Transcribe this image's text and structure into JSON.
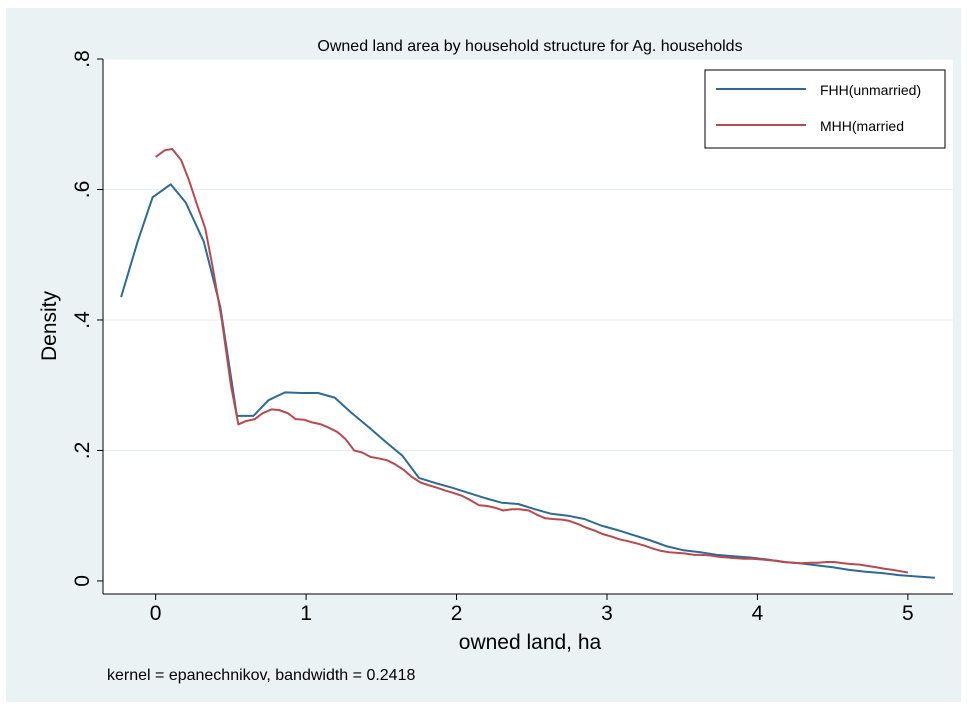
{
  "chart_data": {
    "type": "line",
    "title": "Owned land area by household structure for Ag. households",
    "xlabel": "owned land, ha",
    "ylabel": "Density",
    "note": "kernel = epanechnikov, bandwidth = 0.2418",
    "xlim": [
      -0.35,
      5.3
    ],
    "ylim": [
      -0.02,
      0.8
    ],
    "x_ticks": [
      0,
      1,
      2,
      3,
      4,
      5
    ],
    "x_tick_labels": [
      "0",
      "1",
      "2",
      "3",
      "4",
      "5"
    ],
    "y_ticks": [
      0,
      0.2,
      0.4,
      0.6,
      0.8
    ],
    "y_tick_labels": [
      "0",
      ".2",
      ".4",
      ".6",
      ".8"
    ],
    "grid": true,
    "legend_position": "top-right",
    "series": [
      {
        "name": "FHH(unmarried)",
        "color": "#2e6a96",
        "points": [
          [
            -0.23,
            0.435
          ],
          [
            -0.12,
            0.52
          ],
          [
            -0.02,
            0.588
          ],
          [
            0.1,
            0.608
          ],
          [
            0.2,
            0.58
          ],
          [
            0.32,
            0.52
          ],
          [
            0.43,
            0.42
          ],
          [
            0.54,
            0.253
          ],
          [
            0.65,
            0.253
          ],
          [
            0.75,
            0.277
          ],
          [
            0.86,
            0.289
          ],
          [
            0.97,
            0.288
          ],
          [
            1.08,
            0.288
          ],
          [
            1.19,
            0.281
          ],
          [
            1.3,
            0.258
          ],
          [
            1.42,
            0.235
          ],
          [
            1.53,
            0.213
          ],
          [
            1.64,
            0.192
          ],
          [
            1.75,
            0.158
          ],
          [
            1.86,
            0.15
          ],
          [
            1.97,
            0.143
          ],
          [
            2.08,
            0.135
          ],
          [
            2.19,
            0.127
          ],
          [
            2.3,
            0.12
          ],
          [
            2.41,
            0.118
          ],
          [
            2.52,
            0.11
          ],
          [
            2.63,
            0.103
          ],
          [
            2.74,
            0.1
          ],
          [
            2.85,
            0.095
          ],
          [
            2.96,
            0.085
          ],
          [
            3.07,
            0.078
          ],
          [
            3.18,
            0.07
          ],
          [
            3.29,
            0.062
          ],
          [
            3.4,
            0.053
          ],
          [
            3.51,
            0.047
          ],
          [
            3.62,
            0.044
          ],
          [
            3.73,
            0.04
          ],
          [
            3.84,
            0.038
          ],
          [
            3.95,
            0.036
          ],
          [
            4.06,
            0.033
          ],
          [
            4.17,
            0.029
          ],
          [
            4.28,
            0.027
          ],
          [
            4.39,
            0.024
          ],
          [
            4.5,
            0.021
          ],
          [
            4.61,
            0.017
          ],
          [
            4.72,
            0.014
          ],
          [
            4.83,
            0.012
          ],
          [
            4.94,
            0.009
          ],
          [
            5.05,
            0.007
          ],
          [
            5.18,
            0.005
          ]
        ]
      },
      {
        "name": "MHH(married",
        "color": "#b84a4f",
        "points": [
          [
            0.0,
            0.65
          ],
          [
            0.06,
            0.66
          ],
          [
            0.11,
            0.662
          ],
          [
            0.17,
            0.645
          ],
          [
            0.22,
            0.615
          ],
          [
            0.27,
            0.58
          ],
          [
            0.33,
            0.54
          ],
          [
            0.38,
            0.48
          ],
          [
            0.44,
            0.4
          ],
          [
            0.5,
            0.3
          ],
          [
            0.55,
            0.24
          ],
          [
            0.6,
            0.245
          ],
          [
            0.66,
            0.248
          ],
          [
            0.71,
            0.257
          ],
          [
            0.77,
            0.263
          ],
          [
            0.82,
            0.262
          ],
          [
            0.88,
            0.257
          ],
          [
            0.93,
            0.248
          ],
          [
            0.99,
            0.247
          ],
          [
            1.04,
            0.243
          ],
          [
            1.1,
            0.24
          ],
          [
            1.15,
            0.235
          ],
          [
            1.21,
            0.228
          ],
          [
            1.26,
            0.218
          ],
          [
            1.32,
            0.2
          ],
          [
            1.37,
            0.197
          ],
          [
            1.43,
            0.19
          ],
          [
            1.48,
            0.188
          ],
          [
            1.54,
            0.185
          ],
          [
            1.59,
            0.179
          ],
          [
            1.65,
            0.17
          ],
          [
            1.7,
            0.16
          ],
          [
            1.76,
            0.151
          ],
          [
            1.81,
            0.147
          ],
          [
            1.87,
            0.143
          ],
          [
            1.92,
            0.139
          ],
          [
            1.98,
            0.135
          ],
          [
            2.04,
            0.13
          ],
          [
            2.09,
            0.124
          ],
          [
            2.15,
            0.116
          ],
          [
            2.2,
            0.115
          ],
          [
            2.26,
            0.112
          ],
          [
            2.31,
            0.108
          ],
          [
            2.37,
            0.11
          ],
          [
            2.42,
            0.11
          ],
          [
            2.48,
            0.108
          ],
          [
            2.53,
            0.102
          ],
          [
            2.59,
            0.096
          ],
          [
            2.64,
            0.095
          ],
          [
            2.7,
            0.094
          ],
          [
            2.75,
            0.092
          ],
          [
            2.81,
            0.087
          ],
          [
            2.86,
            0.082
          ],
          [
            2.92,
            0.077
          ],
          [
            2.97,
            0.072
          ],
          [
            3.03,
            0.068
          ],
          [
            3.08,
            0.064
          ],
          [
            3.14,
            0.061
          ],
          [
            3.19,
            0.058
          ],
          [
            3.25,
            0.054
          ],
          [
            3.3,
            0.05
          ],
          [
            3.36,
            0.046
          ],
          [
            3.41,
            0.044
          ],
          [
            3.47,
            0.043
          ],
          [
            3.52,
            0.042
          ],
          [
            3.58,
            0.04
          ],
          [
            3.63,
            0.04
          ],
          [
            3.69,
            0.039
          ],
          [
            3.74,
            0.037
          ],
          [
            3.8,
            0.036
          ],
          [
            3.85,
            0.035
          ],
          [
            3.91,
            0.034
          ],
          [
            3.96,
            0.034
          ],
          [
            4.02,
            0.033
          ],
          [
            4.07,
            0.032
          ],
          [
            4.13,
            0.031
          ],
          [
            4.18,
            0.029
          ],
          [
            4.24,
            0.028
          ],
          [
            4.29,
            0.027
          ],
          [
            4.35,
            0.028
          ],
          [
            4.4,
            0.028
          ],
          [
            4.46,
            0.029
          ],
          [
            4.51,
            0.029
          ],
          [
            4.57,
            0.027
          ],
          [
            4.62,
            0.026
          ],
          [
            4.68,
            0.025
          ],
          [
            4.73,
            0.023
          ],
          [
            4.79,
            0.021
          ],
          [
            4.84,
            0.019
          ],
          [
            4.9,
            0.017
          ],
          [
            4.95,
            0.015
          ],
          [
            5.0,
            0.013
          ]
        ]
      }
    ]
  }
}
